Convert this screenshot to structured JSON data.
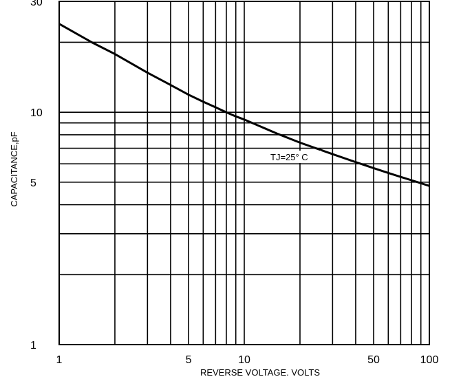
{
  "chart_data": {
    "type": "line",
    "xscale": "log",
    "yscale": "log",
    "xlim": [
      1,
      100
    ],
    "ylim": [
      1,
      30
    ],
    "grid": true,
    "xlabel": "REVERSE VOLTAGE. VOLTS",
    "ylabel": "CAPACITANCE,pF",
    "x_ticks": [
      1,
      5,
      10,
      50,
      100
    ],
    "x_tick_labels": [
      "1",
      "5",
      "10",
      "50",
      "100"
    ],
    "y_ticks": [
      1,
      5,
      10,
      30
    ],
    "y_tick_labels": [
      "1",
      "5",
      "10",
      "30"
    ],
    "x_grid": [
      1,
      2,
      3,
      4,
      5,
      6,
      7,
      8,
      9,
      10,
      20,
      30,
      40,
      50,
      60,
      70,
      80,
      90,
      100
    ],
    "y_grid": [
      1,
      2,
      3,
      4,
      5,
      6,
      7,
      8,
      9,
      10,
      20,
      30
    ],
    "annotation": "TJ=25° C",
    "series": [
      {
        "x": [
          1,
          1.5,
          2,
          3,
          4,
          5,
          6,
          7,
          8,
          9,
          10,
          15,
          20,
          30,
          40,
          50,
          60,
          70,
          80,
          90,
          100
        ],
        "values": [
          24,
          20,
          17.8,
          14.8,
          13.1,
          11.9,
          11.1,
          10.5,
          10.0,
          9.6,
          9.3,
          8.1,
          7.4,
          6.6,
          6.1,
          5.75,
          5.48,
          5.27,
          5.1,
          4.95,
          4.82
        ]
      }
    ]
  }
}
